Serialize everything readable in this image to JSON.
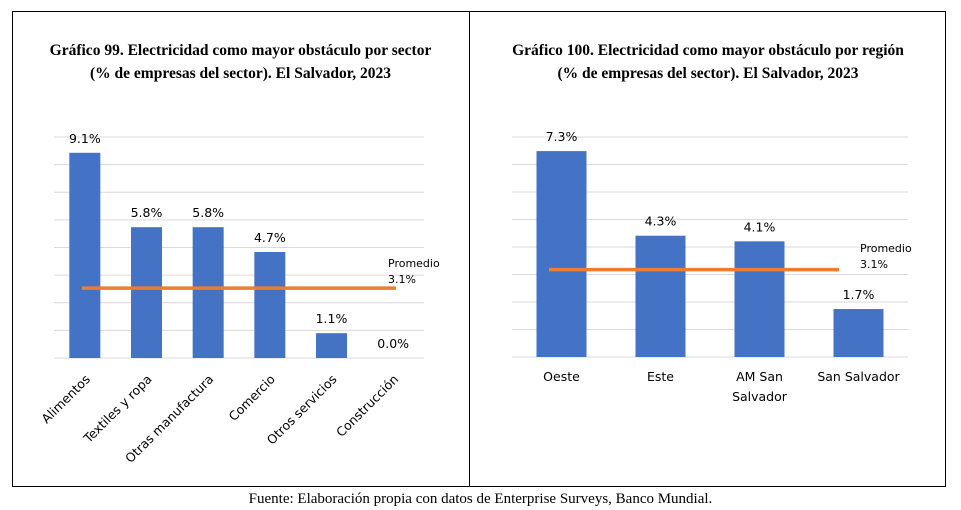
{
  "source": "Fuente: Elaboración propia con datos de Enterprise Surveys, Banco Mundial.",
  "chart_data": [
    {
      "type": "bar",
      "title": "Gráfico 99. Electricidad como mayor obstáculo por sector (% de empresas del sector). El Salvador, 2023",
      "title_lines": [
        "Gráfico 99. Electricidad como mayor obstáculo por sector",
        "(% de empresas del sector). El Salvador, 2023"
      ],
      "categories": [
        "Alimentos",
        "Textiles y ropa",
        "Otras manufactura",
        "Comercio",
        "Otros servicios",
        "Construcción"
      ],
      "values": [
        9.1,
        5.8,
        5.8,
        4.7,
        1.1,
        0.0
      ],
      "data_labels": [
        "9.1%",
        "5.8%",
        "5.8%",
        "4.7%",
        "1.1%",
        "0.0%"
      ],
      "average": {
        "value": 3.1,
        "label_lines": [
          "Promedio",
          "3.1%"
        ]
      },
      "ylim": [
        0,
        9.8
      ],
      "grid": true,
      "bar_color": "#4472C4",
      "average_color": "#ED7D31"
    },
    {
      "type": "bar",
      "title": "Gráfico 100. Electricidad como mayor obstáculo por región (% de empresas del sector). El Salvador, 2023",
      "title_lines": [
        "Gráfico 100. Electricidad como mayor obstáculo por región",
        "(% de empresas del sector). El Salvador, 2023"
      ],
      "categories": [
        "Oeste",
        "Este",
        "AM San Salvador",
        "San Salvador"
      ],
      "category_lines": [
        [
          "Oeste"
        ],
        [
          "Este"
        ],
        [
          "AM San",
          "Salvador"
        ],
        [
          "San Salvador"
        ]
      ],
      "values": [
        7.3,
        4.3,
        4.1,
        1.7
      ],
      "data_labels": [
        "7.3%",
        "4.3%",
        "4.1%",
        "1.7%"
      ],
      "average": {
        "value": 3.1,
        "label_lines": [
          "Promedio",
          "3.1%"
        ]
      },
      "ylim": [
        0,
        7.8
      ],
      "grid": true,
      "bar_color": "#4472C4",
      "average_color": "#ED7D31"
    }
  ]
}
